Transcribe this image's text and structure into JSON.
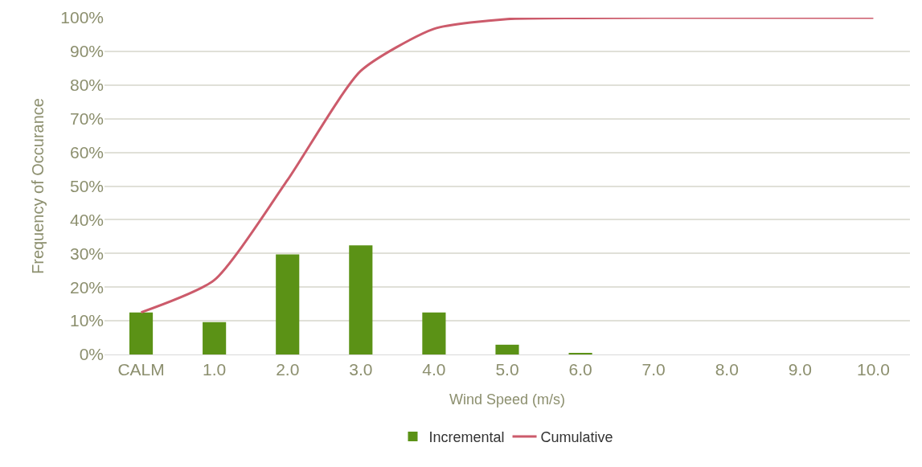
{
  "chart_data": {
    "type": "bar",
    "xlabel": "Wind Speed (m/s)",
    "ylabel": "Frequency of Occurance",
    "categories": [
      "CALM",
      "1.0",
      "2.0",
      "3.0",
      "4.0",
      "5.0",
      "6.0",
      "7.0",
      "8.0",
      "9.0",
      "10.0"
    ],
    "series": [
      {
        "name": "Incremental",
        "color": "#5b9216",
        "values": [
          12.5,
          9.6,
          29.7,
          32.4,
          12.5,
          2.9,
          0.3,
          0,
          0,
          0,
          0
        ]
      },
      {
        "name": "Cumulative",
        "type": "line",
        "color": "#cc5b6b",
        "values": [
          12.5,
          22.1,
          51.8,
          84.2,
          96.7,
          99.6,
          99.9,
          100,
          100,
          100,
          100
        ]
      }
    ],
    "ylim": [
      0,
      100
    ],
    "yticks": [
      {
        "value": 0,
        "label": "0%"
      },
      {
        "value": 10,
        "label": "10%"
      },
      {
        "value": 20,
        "label": "20%"
      },
      {
        "value": 30,
        "label": "30%"
      },
      {
        "value": 40,
        "label": "40%"
      },
      {
        "value": 50,
        "label": "50%"
      },
      {
        "value": 60,
        "label": "60%"
      },
      {
        "value": 70,
        "label": "70%"
      },
      {
        "value": 80,
        "label": "80%"
      },
      {
        "value": 90,
        "label": "90%"
      },
      {
        "value": 100,
        "label": "100%"
      }
    ],
    "grid": "y",
    "legend": "bottom",
    "marker": "none"
  }
}
